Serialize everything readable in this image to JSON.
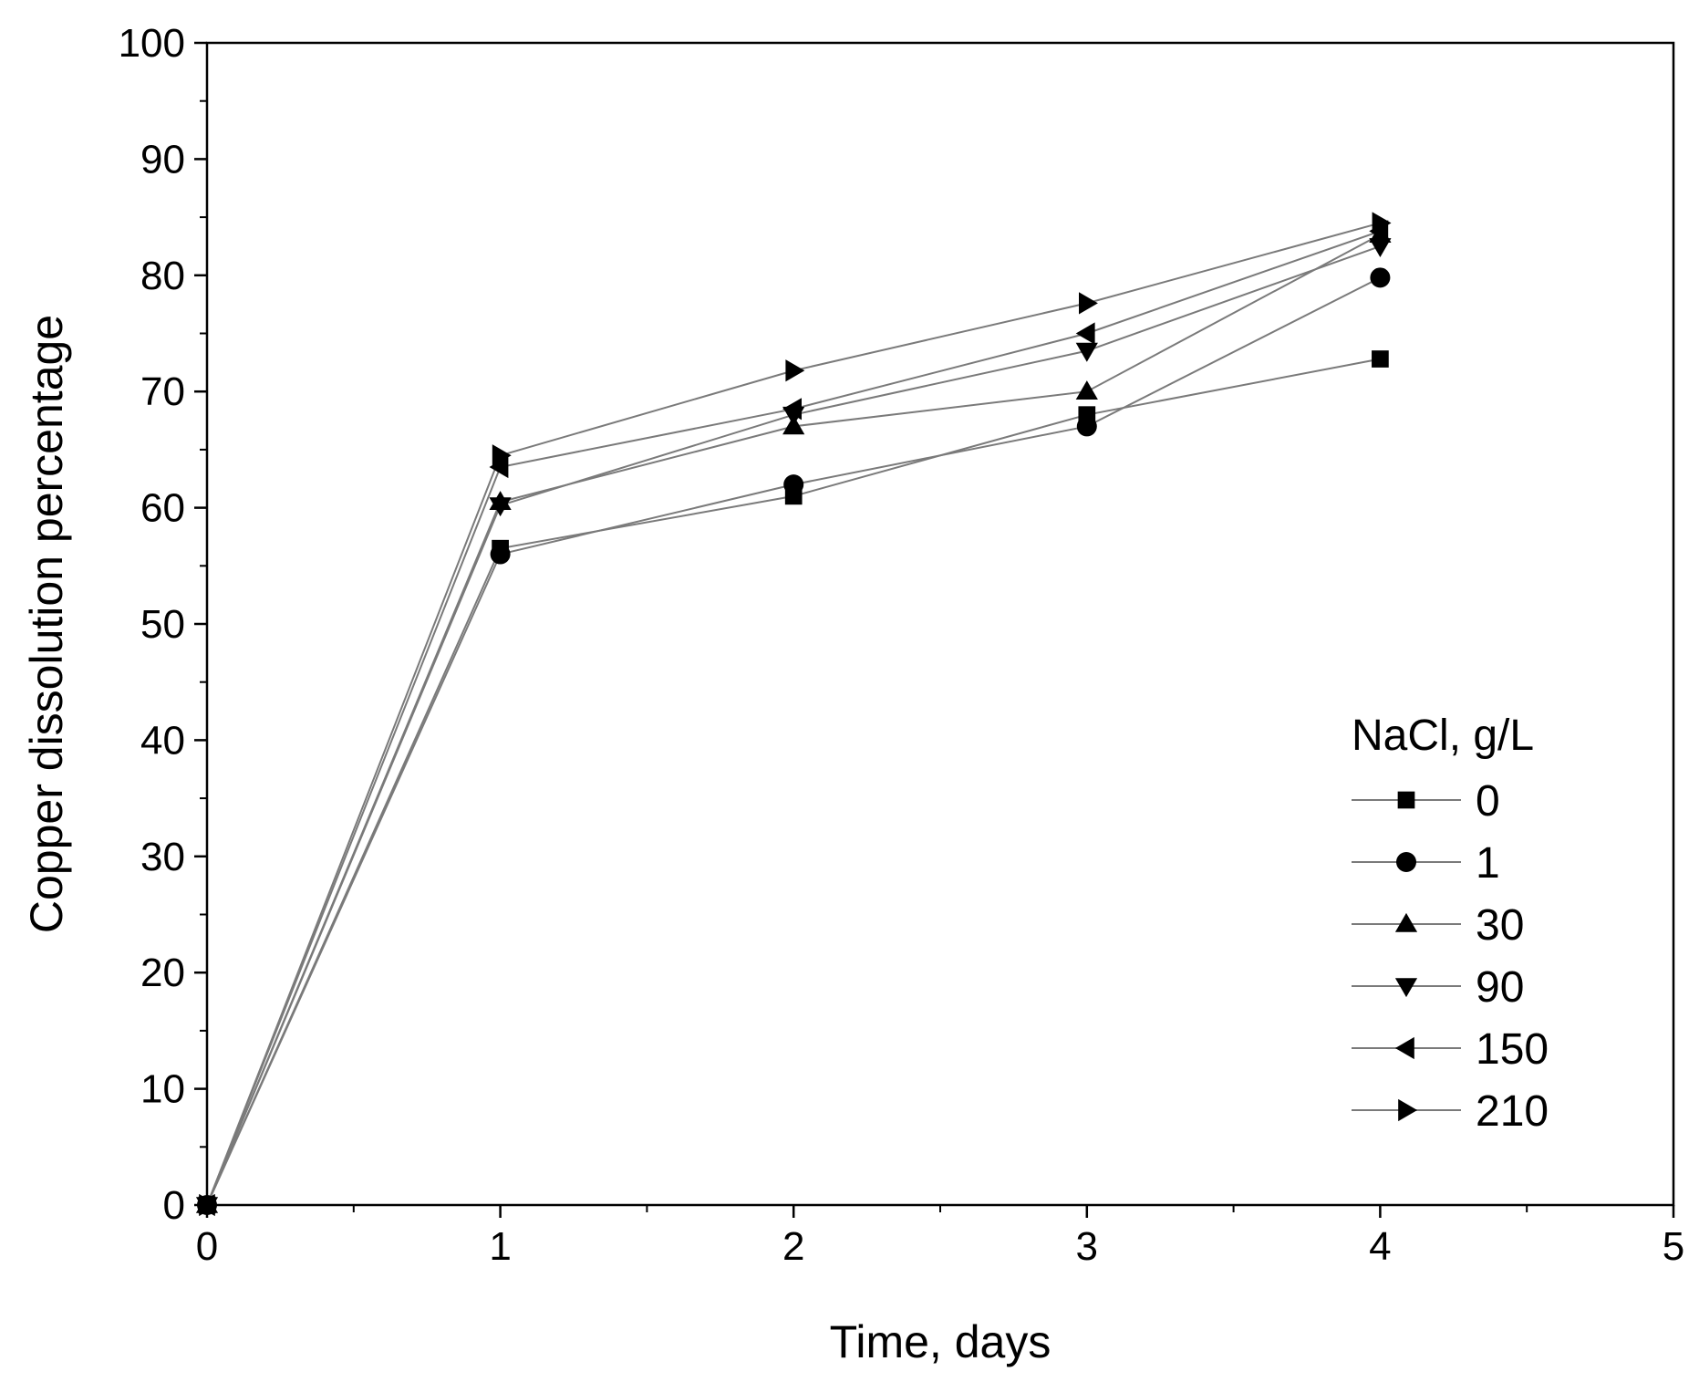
{
  "chart_data": {
    "type": "line",
    "title": "",
    "xlabel": "Time, days",
    "ylabel": "Copper dissolution percentage",
    "xlim": [
      0,
      5
    ],
    "ylim": [
      0,
      100
    ],
    "x_ticks": [
      0,
      1,
      2,
      3,
      4,
      5
    ],
    "x_tick_labels": [
      "0",
      "1",
      "2",
      "3",
      "4",
      "5"
    ],
    "y_ticks": [
      0,
      10,
      20,
      30,
      40,
      50,
      60,
      70,
      80,
      90,
      100
    ],
    "y_tick_labels": [
      "0",
      "10",
      "20",
      "30",
      "40",
      "50",
      "60",
      "70",
      "80",
      "90",
      "100"
    ],
    "grid": false,
    "legend_title": "NaCl, g/L",
    "legend_position": "bottom-right",
    "x": [
      0,
      1,
      2,
      3,
      4
    ],
    "series": [
      {
        "name": "0",
        "marker": "square",
        "values": [
          0,
          56.5,
          61.0,
          68.0,
          72.8
        ]
      },
      {
        "name": "1",
        "marker": "circle",
        "values": [
          0,
          56.0,
          62.0,
          67.0,
          79.8
        ]
      },
      {
        "name": "30",
        "marker": "triangle-up",
        "values": [
          0,
          60.5,
          67.0,
          70.0,
          83.5
        ]
      },
      {
        "name": "90",
        "marker": "triangle-down",
        "values": [
          0,
          60.2,
          68.0,
          73.5,
          82.5
        ]
      },
      {
        "name": "150",
        "marker": "triangle-left",
        "values": [
          0,
          63.5,
          68.5,
          75.0,
          83.8
        ]
      },
      {
        "name": "210",
        "marker": "triangle-right",
        "values": [
          0,
          64.5,
          71.8,
          77.6,
          84.5
        ]
      }
    ],
    "colors": {
      "line": "#7a7a7a",
      "marker": "#000000",
      "axis": "#000000"
    }
  }
}
